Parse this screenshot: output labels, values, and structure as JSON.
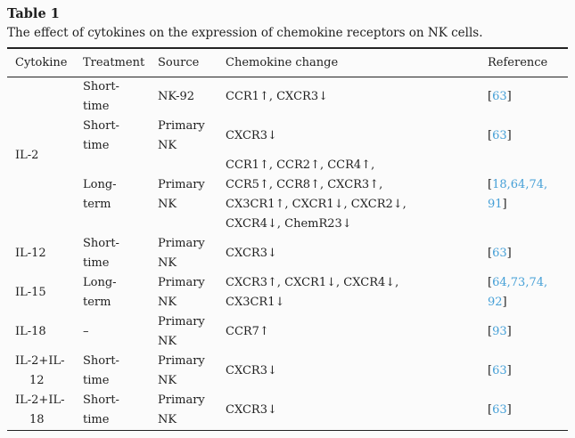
{
  "title": "Table 1",
  "caption": "The effect of cytokines on the expression of chemokine receptors on NK cells.",
  "theme": {
    "text_color": "#1f1f1f",
    "link_color": "#46a0d7",
    "rule_color": "#222222",
    "background": "#fbfbfb"
  },
  "columns": [
    {
      "key": "cytokine",
      "label": "Cytokine"
    },
    {
      "key": "treatment",
      "label": "Treatment"
    },
    {
      "key": "source",
      "label": "Source"
    },
    {
      "key": "chemokine-change",
      "label": "Chemokine change"
    },
    {
      "key": "reference",
      "label": "Reference"
    }
  ],
  "rows": [
    {
      "cytokine": "IL-2",
      "cytokine_rowspan": 3,
      "treatment": "Short-\ntime",
      "source": "NK-92",
      "chemokine_change": "CCR1↑, CXCR3↓",
      "references": [
        "63"
      ]
    },
    {
      "treatment": "Short-\ntime",
      "source": "Primary\nNK",
      "chemokine_change": "CXCR3↓",
      "references": [
        "63"
      ]
    },
    {
      "treatment": "Long-term",
      "source": "Primary\nNK",
      "chemokine_change": "CCR1↑, CCR2↑, CCR4↑,\nCCR5↑, CCR8↑, CXCR3↑,\nCX3CR1↑, CXCR1↓, CXCR2↓,\nCXCR4↓, ChemR23↓",
      "references": [
        "18",
        "64",
        "74",
        "91"
      ]
    },
    {
      "cytokine": "IL-12",
      "treatment": "Short-\ntime",
      "source": "Primary\nNK",
      "chemokine_change": "CXCR3↓",
      "references": [
        "63"
      ]
    },
    {
      "cytokine": "IL-15",
      "treatment": "Long-term",
      "source": "Primary\nNK",
      "chemokine_change": "CXCR3↑, CXCR1↓, CXCR4↓,\nCX3CR1↓",
      "references": [
        "64",
        "73",
        "74",
        "92"
      ]
    },
    {
      "cytokine": "IL-18",
      "treatment": "–",
      "source": "Primary\nNK",
      "chemokine_change": "CCR7↑",
      "references": [
        "93"
      ]
    },
    {
      "cytokine": "IL-2+IL-\n12",
      "treatment": "Short-\ntime",
      "source": "Primary\nNK",
      "chemokine_change": "CXCR3↓",
      "references": [
        "63"
      ]
    },
    {
      "cytokine": "IL-2+IL-\n18",
      "treatment": "Short-\ntime",
      "source": "Primary\nNK",
      "chemokine_change": "CXCR3↓",
      "references": [
        "63"
      ]
    }
  ]
}
